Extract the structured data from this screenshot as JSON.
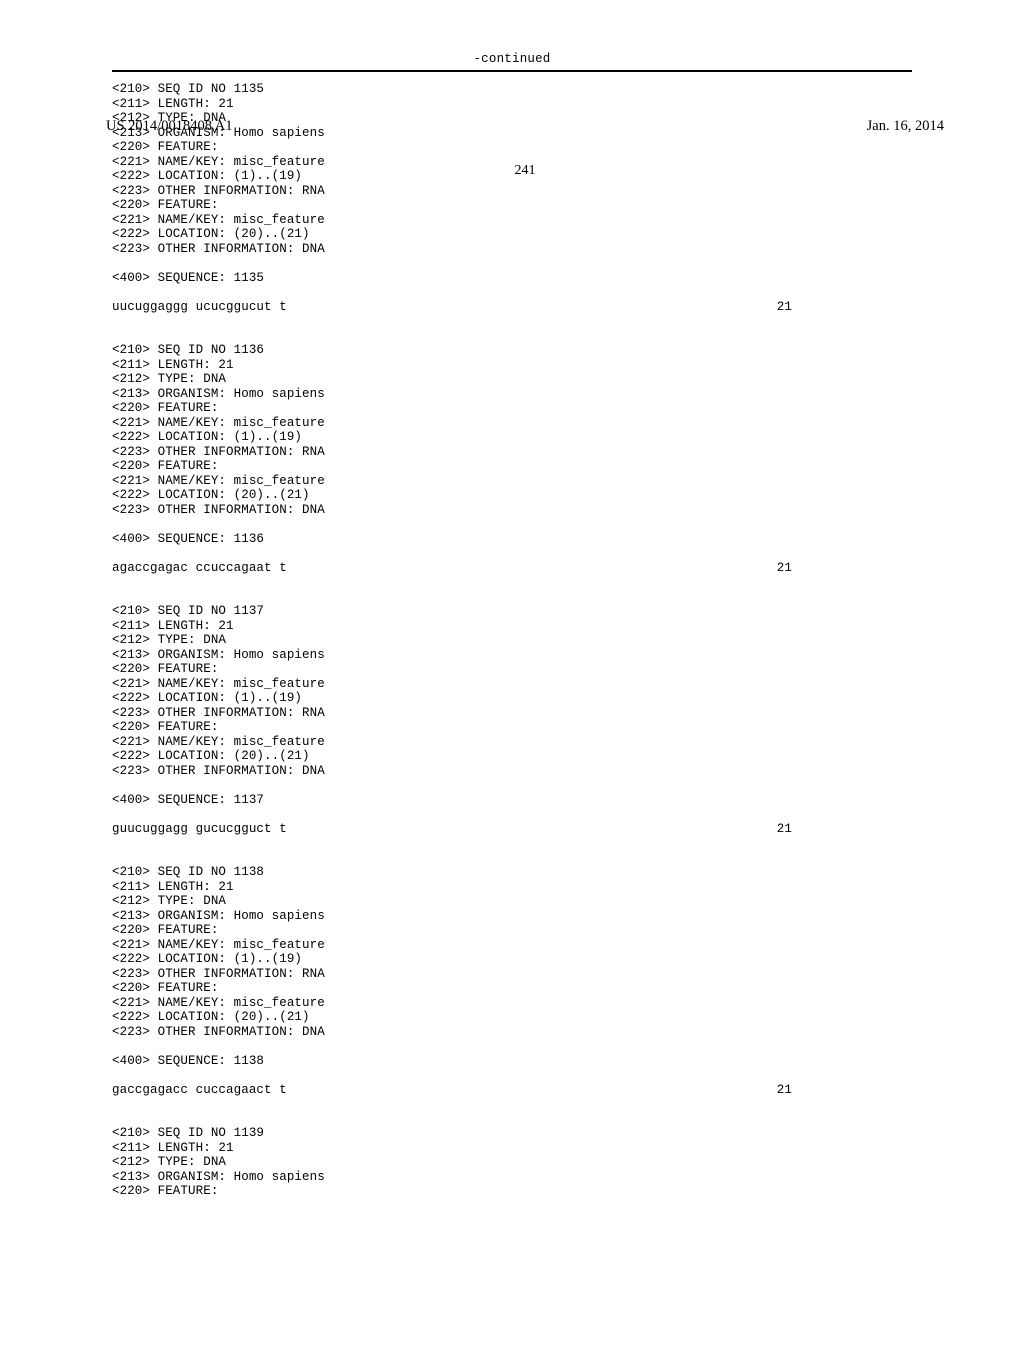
{
  "header": {
    "publication_number": "US 2014/0018408 A1",
    "publication_date": "Jan. 16, 2014",
    "page_number": "241"
  },
  "continued_label": "-continued",
  "entries": [
    {
      "seq_id": "1135",
      "length": "21",
      "type": "DNA",
      "organism": "Homo sapiens",
      "features": [
        {
          "name_key": "misc_feature",
          "location": "(1)..(19)",
          "other_info": "RNA"
        },
        {
          "name_key": "misc_feature",
          "location": "(20)..(21)",
          "other_info": "DNA"
        }
      ],
      "sequence_label": "1135",
      "sequence": "uucuggaggg ucucggucut t",
      "seq_len_display": "21"
    },
    {
      "seq_id": "1136",
      "length": "21",
      "type": "DNA",
      "organism": "Homo sapiens",
      "features": [
        {
          "name_key": "misc_feature",
          "location": "(1)..(19)",
          "other_info": "RNA"
        },
        {
          "name_key": "misc_feature",
          "location": "(20)..(21)",
          "other_info": "DNA"
        }
      ],
      "sequence_label": "1136",
      "sequence": "agaccgagac ccuccagaat t",
      "seq_len_display": "21"
    },
    {
      "seq_id": "1137",
      "length": "21",
      "type": "DNA",
      "organism": "Homo sapiens",
      "features": [
        {
          "name_key": "misc_feature",
          "location": "(1)..(19)",
          "other_info": "RNA"
        },
        {
          "name_key": "misc_feature",
          "location": "(20)..(21)",
          "other_info": "DNA"
        }
      ],
      "sequence_label": "1137",
      "sequence": "guucuggagg gucucgguct t",
      "seq_len_display": "21"
    },
    {
      "seq_id": "1138",
      "length": "21",
      "type": "DNA",
      "organism": "Homo sapiens",
      "features": [
        {
          "name_key": "misc_feature",
          "location": "(1)..(19)",
          "other_info": "RNA"
        },
        {
          "name_key": "misc_feature",
          "location": "(20)..(21)",
          "other_info": "DNA"
        }
      ],
      "sequence_label": "1138",
      "sequence": "gaccgagacc cuccagaact t",
      "seq_len_display": "21"
    },
    {
      "seq_id": "1139",
      "length": "21",
      "type": "DNA",
      "organism": "Homo sapiens",
      "features": [],
      "sequence_label": null,
      "sequence": null,
      "seq_len_display": null,
      "trailing_feature_line": true
    }
  ],
  "labels": {
    "seq_id_no": "SEQ ID NO",
    "length": "LENGTH:",
    "type": "TYPE:",
    "organism": "ORGANISM:",
    "feature": "FEATURE:",
    "name_key": "NAME/KEY:",
    "location": "LOCATION:",
    "other_info": "OTHER INFORMATION:",
    "sequence": "SEQUENCE:"
  },
  "tags": {
    "t210": "<210>",
    "t211": "<211>",
    "t212": "<212>",
    "t213": "<213>",
    "t220": "<220>",
    "t221": "<221>",
    "t222": "<222>",
    "t223": "<223>",
    "t400": "<400>"
  }
}
